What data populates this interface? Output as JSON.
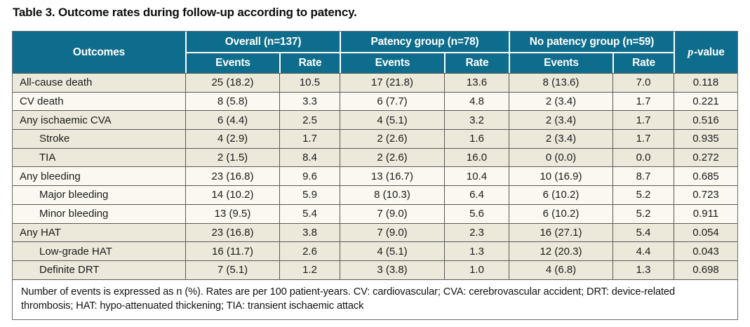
{
  "title": "Table 3. Outcome rates during follow-up according to patency.",
  "table": {
    "outcomes_header": "Outcomes",
    "group_headers": {
      "overall": "Overall (n=137)",
      "patency": "Patency group (n=78)",
      "no_patency": "No patency group (n=59)"
    },
    "subheaders": {
      "events": "Events",
      "rate": "Rate"
    },
    "pvalue_header": {
      "italic": "p",
      "rest": "-value"
    },
    "rows": [
      {
        "outcome": "All-cause death",
        "overall_events": "25 (18.2)",
        "overall_rate": "10.5",
        "patency_events": "17 (21.8)",
        "patency_rate": "13.6",
        "no_patency_events": "8 (13.6)",
        "no_patency_rate": "7.0",
        "p_value": "0.118"
      },
      {
        "outcome": "CV death",
        "overall_events": "8 (5.8)",
        "overall_rate": "3.3",
        "patency_events": "6 (7.7)",
        "patency_rate": "4.8",
        "no_patency_events": "2 (3.4)",
        "no_patency_rate": "1.7",
        "p_value": "0.221"
      },
      {
        "outcome": "Any ischaemic CVA",
        "overall_events": "6 (4.4)",
        "overall_rate": "2.5",
        "patency_events": "4 (5.1)",
        "patency_rate": "3.2",
        "no_patency_events": "2 (3.4)",
        "no_patency_rate": "1.7",
        "p_value": "0.516"
      },
      {
        "outcome": "Stroke",
        "overall_events": "4 (2.9)",
        "overall_rate": "1.7",
        "patency_events": "2 (2.6)",
        "patency_rate": "1.6",
        "no_patency_events": "2 (3.4)",
        "no_patency_rate": "1.7",
        "p_value": "0.935"
      },
      {
        "outcome": "TIA",
        "overall_events": "2 (1.5)",
        "overall_rate": "8.4",
        "patency_events": "2 (2.6)",
        "patency_rate": "16.0",
        "no_patency_events": "0 (0.0)",
        "no_patency_rate": "0.0",
        "p_value": "0.272"
      },
      {
        "outcome": "Any bleeding",
        "overall_events": "23 (16.8)",
        "overall_rate": "9.6",
        "patency_events": "13 (16.7)",
        "patency_rate": "10.4",
        "no_patency_events": "10 (16.9)",
        "no_patency_rate": "8.7",
        "p_value": "0.685"
      },
      {
        "outcome": "Major bleeding",
        "overall_events": "14 (10.2)",
        "overall_rate": "5.9",
        "patency_events": "8 (10.3)",
        "patency_rate": "6.4",
        "no_patency_events": "6 (10.2)",
        "no_patency_rate": "5.2",
        "p_value": "0.723"
      },
      {
        "outcome": "Minor bleeding",
        "overall_events": "13 (9.5)",
        "overall_rate": "5.4",
        "patency_events": "7 (9.0)",
        "patency_rate": "5.6",
        "no_patency_events": "6 (10.2)",
        "no_patency_rate": "5.2",
        "p_value": "0.911"
      },
      {
        "outcome": "Any HAT",
        "overall_events": "23 (16.8)",
        "overall_rate": "3.8",
        "patency_events": "7 (9.0)",
        "patency_rate": "2.3",
        "no_patency_events": "16 (27.1)",
        "no_patency_rate": "5.4",
        "p_value": "0.054"
      },
      {
        "outcome": "Low-grade HAT",
        "overall_events": "16 (11.7)",
        "overall_rate": "2.6",
        "patency_events": "4 (5.1)",
        "patency_rate": "1.3",
        "no_patency_events": "12 (20.3)",
        "no_patency_rate": "4.4",
        "p_value": "0.043"
      },
      {
        "outcome": "Definite DRT",
        "overall_events": "7 (5.1)",
        "overall_rate": "1.2",
        "patency_events": "3 (3.8)",
        "patency_rate": "1.0",
        "no_patency_events": "4 (6.8)",
        "no_patency_rate": "1.3",
        "p_value": "0.698"
      }
    ],
    "footnote": "Number of events is expressed as n (%). Rates are per 100 patient-years. CV: cardiovascular; CVA: cerebrovascular accident; DRT: device-related thrombosis; HAT: hypo-attenuated thickening; TIA: transient ischaemic attack"
  },
  "colors": {
    "header_teal": "#0e6d8c",
    "row_cream": "#ece8da",
    "row_white": "#faf8f0",
    "border_dark": "#595959"
  }
}
